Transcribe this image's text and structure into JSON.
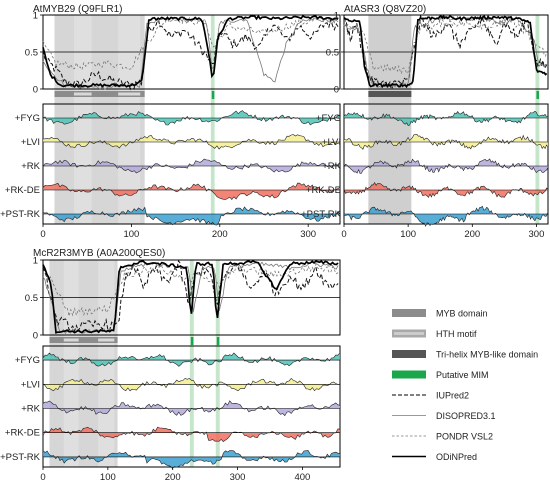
{
  "legend": [
    {
      "key": "myb",
      "label": "MYB domain",
      "swatch": "#8c8c8c",
      "kind": "box"
    },
    {
      "key": "hth",
      "label": "HTH motif",
      "swatch": "#cccccc",
      "kind": "thinbox"
    },
    {
      "key": "tri",
      "label": "Tri-helix MYB-like domain",
      "swatch": "#555555",
      "kind": "box"
    },
    {
      "key": "mim",
      "label": "Putative MIM",
      "swatch": "#1aa64b",
      "kind": "box"
    },
    {
      "key": "iupred",
      "label": "IUPred2",
      "kind": "line",
      "dash": "4,2",
      "w": 1
    },
    {
      "key": "disopred",
      "label": "DISOPRED3.1",
      "kind": "line",
      "dash": "",
      "w": 0.8,
      "color": "#777"
    },
    {
      "key": "pondr",
      "label": "PONDR VSL2",
      "kind": "line",
      "dash": "2.5,2",
      "w": 0.8,
      "color": "#777"
    },
    {
      "key": "odinpred",
      "label": "ODiNPred",
      "kind": "line",
      "dash": "",
      "w": 1.6
    }
  ],
  "colors": {
    "FYG": "#4ec3b5",
    "LVI": "#f3ee8f",
    "RK": "#b4a9db",
    "RK-DE": "#f06e60",
    "PST-RK": "#3ba0cf"
  },
  "chart_data": [
    {
      "title": "AtMYB29 (Q9FLR1)",
      "type": "line",
      "length": 336,
      "xticks": [
        0,
        100,
        200,
        300
      ],
      "yticks": [
        "0",
        "0.5",
        "1"
      ],
      "ylim": [
        0,
        1
      ],
      "threshold": 0.5,
      "tracks": [
        "+FYG",
        "+LVI",
        "+RK",
        "+RK-DE",
        "+PST-RK"
      ],
      "domains": {
        "myb": [
          [
            13,
            115
          ]
        ],
        "hth": [
          [
            35,
            55
          ],
          [
            85,
            110
          ]
        ],
        "mim": [
          [
            191,
            193
          ]
        ]
      },
      "series_profiles": {
        "IUPred2": [
          [
            0,
            0.5
          ],
          [
            5,
            0.35
          ],
          [
            12,
            0.3
          ],
          [
            25,
            0.1
          ],
          [
            40,
            0.05
          ],
          [
            60,
            0.2
          ],
          [
            80,
            0.1
          ],
          [
            100,
            0.05
          ],
          [
            112,
            0.1
          ],
          [
            118,
            0.75
          ],
          [
            130,
            0.95
          ],
          [
            145,
            0.7
          ],
          [
            160,
            0.8
          ],
          [
            175,
            0.6
          ],
          [
            185,
            0.45
          ],
          [
            192,
            0.3
          ],
          [
            200,
            0.8
          ],
          [
            215,
            0.6
          ],
          [
            230,
            0.7
          ],
          [
            245,
            0.55
          ],
          [
            260,
            0.9
          ],
          [
            275,
            0.65
          ],
          [
            290,
            0.85
          ],
          [
            305,
            0.7
          ],
          [
            320,
            0.9
          ],
          [
            336,
            0.85
          ]
        ],
        "DISOPRED3.1": [
          [
            0,
            0.4
          ],
          [
            10,
            0.2
          ],
          [
            25,
            0.05
          ],
          [
            60,
            0.02
          ],
          [
            110,
            0.05
          ],
          [
            118,
            0.9
          ],
          [
            150,
            0.95
          ],
          [
            185,
            0.9
          ],
          [
            192,
            0.2
          ],
          [
            200,
            0.9
          ],
          [
            230,
            0.95
          ],
          [
            250,
            0.2
          ],
          [
            262,
            0.1
          ],
          [
            275,
            0.6
          ],
          [
            290,
            0.9
          ],
          [
            310,
            0.95
          ],
          [
            336,
            0.9
          ]
        ],
        "PONDR VSL2": [
          [
            0,
            0.6
          ],
          [
            15,
            0.35
          ],
          [
            40,
            0.3
          ],
          [
            70,
            0.35
          ],
          [
            100,
            0.3
          ],
          [
            115,
            0.6
          ],
          [
            140,
            0.95
          ],
          [
            185,
            0.9
          ],
          [
            192,
            0.55
          ],
          [
            210,
            0.85
          ],
          [
            250,
            0.75
          ],
          [
            290,
            0.9
          ],
          [
            336,
            0.95
          ]
        ],
        "ODiNPred": [
          [
            0,
            0.55
          ],
          [
            8,
            0.2
          ],
          [
            20,
            0.05
          ],
          [
            60,
            0.05
          ],
          [
            100,
            0.05
          ],
          [
            112,
            0.1
          ],
          [
            120,
            0.95
          ],
          [
            180,
            0.95
          ],
          [
            188,
            0.45
          ],
          [
            192,
            0.1
          ],
          [
            198,
            0.7
          ],
          [
            210,
            0.95
          ],
          [
            240,
            0.97
          ],
          [
            260,
            0.95
          ],
          [
            300,
            0.97
          ],
          [
            336,
            0.95
          ]
        ]
      }
    },
    {
      "title": "AtASR3 (Q8VZ20)",
      "type": "line",
      "length": 318,
      "xticks": [
        0,
        100,
        200,
        300
      ],
      "yticks": [
        "0",
        "0.5",
        "1"
      ],
      "ylim": [
        0,
        1
      ],
      "threshold": 0.5,
      "tracks": [
        "+FYG",
        "+LVI",
        "+RK",
        "+RK-DE",
        "+PST-RK"
      ],
      "domains": {
        "tri": [
          [
            38,
            105
          ]
        ],
        "mim": [
          [
            300,
            303
          ]
        ]
      },
      "series_profiles": {
        "IUPred2": [
          [
            0,
            0.95
          ],
          [
            10,
            0.7
          ],
          [
            20,
            0.9
          ],
          [
            30,
            0.4
          ],
          [
            40,
            0.15
          ],
          [
            60,
            0.05
          ],
          [
            100,
            0.1
          ],
          [
            110,
            0.6
          ],
          [
            120,
            0.95
          ],
          [
            140,
            0.7
          ],
          [
            160,
            0.9
          ],
          [
            180,
            0.6
          ],
          [
            200,
            0.8
          ],
          [
            215,
            0.95
          ],
          [
            235,
            0.6
          ],
          [
            250,
            0.9
          ],
          [
            270,
            0.7
          ],
          [
            285,
            0.95
          ],
          [
            300,
            0.35
          ],
          [
            318,
            0.3
          ]
        ],
        "DISOPRED3.1": [
          [
            0,
            0.85
          ],
          [
            25,
            0.8
          ],
          [
            35,
            0.3
          ],
          [
            45,
            0.05
          ],
          [
            100,
            0.05
          ],
          [
            110,
            0.85
          ],
          [
            150,
            0.95
          ],
          [
            220,
            0.95
          ],
          [
            240,
            0.9
          ],
          [
            270,
            0.95
          ],
          [
            295,
            0.7
          ],
          [
            305,
            0.3
          ],
          [
            318,
            0.35
          ]
        ],
        "PONDR VSL2": [
          [
            0,
            0.9
          ],
          [
            30,
            0.75
          ],
          [
            45,
            0.3
          ],
          [
            100,
            0.25
          ],
          [
            115,
            0.8
          ],
          [
            160,
            0.9
          ],
          [
            230,
            0.85
          ],
          [
            260,
            0.95
          ],
          [
            300,
            0.6
          ],
          [
            318,
            0.45
          ]
        ],
        "ODiNPred": [
          [
            0,
            0.95
          ],
          [
            25,
            0.9
          ],
          [
            32,
            0.3
          ],
          [
            40,
            0.05
          ],
          [
            100,
            0.05
          ],
          [
            108,
            0.1
          ],
          [
            115,
            0.95
          ],
          [
            160,
            0.97
          ],
          [
            180,
            0.95
          ],
          [
            240,
            0.97
          ],
          [
            270,
            0.95
          ],
          [
            290,
            0.9
          ],
          [
            300,
            0.25
          ],
          [
            318,
            0.2
          ]
        ]
      }
    },
    {
      "title": "McR2R3MYB (A0A200QES0)",
      "type": "line",
      "length": 458,
      "xticks": [
        0,
        100,
        200,
        300,
        400
      ],
      "yticks": [
        "0",
        "0.5",
        "1"
      ],
      "ylim": [
        0,
        1
      ],
      "threshold": 0.5,
      "tracks": [
        "+FYG",
        "+LVI",
        "+RK",
        "+RK-DE",
        "+PST-RK"
      ],
      "domains": {
        "myb": [
          [
            10,
            115
          ]
        ],
        "hth": [
          [
            32,
            55
          ],
          [
            85,
            110
          ]
        ],
        "mim": [
          [
            228,
            231
          ],
          [
            268,
            271
          ]
        ]
      },
      "series_profiles": {
        "IUPred2": [
          [
            0,
            0.85
          ],
          [
            10,
            0.6
          ],
          [
            20,
            0.2
          ],
          [
            50,
            0.1
          ],
          [
            90,
            0.15
          ],
          [
            115,
            0.1
          ],
          [
            125,
            0.7
          ],
          [
            140,
            0.95
          ],
          [
            155,
            0.6
          ],
          [
            170,
            0.9
          ],
          [
            190,
            0.7
          ],
          [
            210,
            0.95
          ],
          [
            225,
            0.4
          ],
          [
            235,
            0.8
          ],
          [
            255,
            0.9
          ],
          [
            268,
            0.4
          ],
          [
            275,
            0.7
          ],
          [
            300,
            0.95
          ],
          [
            320,
            0.6
          ],
          [
            340,
            0.85
          ],
          [
            360,
            0.55
          ],
          [
            380,
            0.8
          ],
          [
            400,
            0.6
          ],
          [
            420,
            0.9
          ],
          [
            440,
            0.65
          ],
          [
            458,
            0.7
          ]
        ],
        "DISOPRED3.1": [
          [
            0,
            0.8
          ],
          [
            15,
            0.4
          ],
          [
            25,
            0.05
          ],
          [
            110,
            0.05
          ],
          [
            120,
            0.85
          ],
          [
            160,
            0.95
          ],
          [
            225,
            0.9
          ],
          [
            232,
            0.3
          ],
          [
            245,
            0.9
          ],
          [
            265,
            0.9
          ],
          [
            272,
            0.3
          ],
          [
            285,
            0.9
          ],
          [
            330,
            0.95
          ],
          [
            380,
            0.9
          ],
          [
            420,
            0.95
          ],
          [
            458,
            0.9
          ]
        ],
        "PONDR VSL2": [
          [
            0,
            0.9
          ],
          [
            20,
            0.6
          ],
          [
            40,
            0.3
          ],
          [
            100,
            0.35
          ],
          [
            125,
            0.8
          ],
          [
            180,
            0.9
          ],
          [
            225,
            0.7
          ],
          [
            240,
            0.85
          ],
          [
            270,
            0.65
          ],
          [
            300,
            0.9
          ],
          [
            360,
            0.8
          ],
          [
            420,
            0.9
          ],
          [
            458,
            0.85
          ]
        ],
        "ODiNPred": [
          [
            0,
            0.95
          ],
          [
            12,
            0.7
          ],
          [
            20,
            0.05
          ],
          [
            110,
            0.05
          ],
          [
            118,
            0.9
          ],
          [
            150,
            0.97
          ],
          [
            180,
            0.95
          ],
          [
            222,
            0.9
          ],
          [
            228,
            0.2
          ],
          [
            236,
            0.95
          ],
          [
            262,
            0.95
          ],
          [
            268,
            0.15
          ],
          [
            278,
            0.95
          ],
          [
            330,
            0.97
          ],
          [
            360,
            0.6
          ],
          [
            380,
            0.95
          ],
          [
            420,
            0.97
          ],
          [
            458,
            0.95
          ]
        ]
      }
    }
  ]
}
